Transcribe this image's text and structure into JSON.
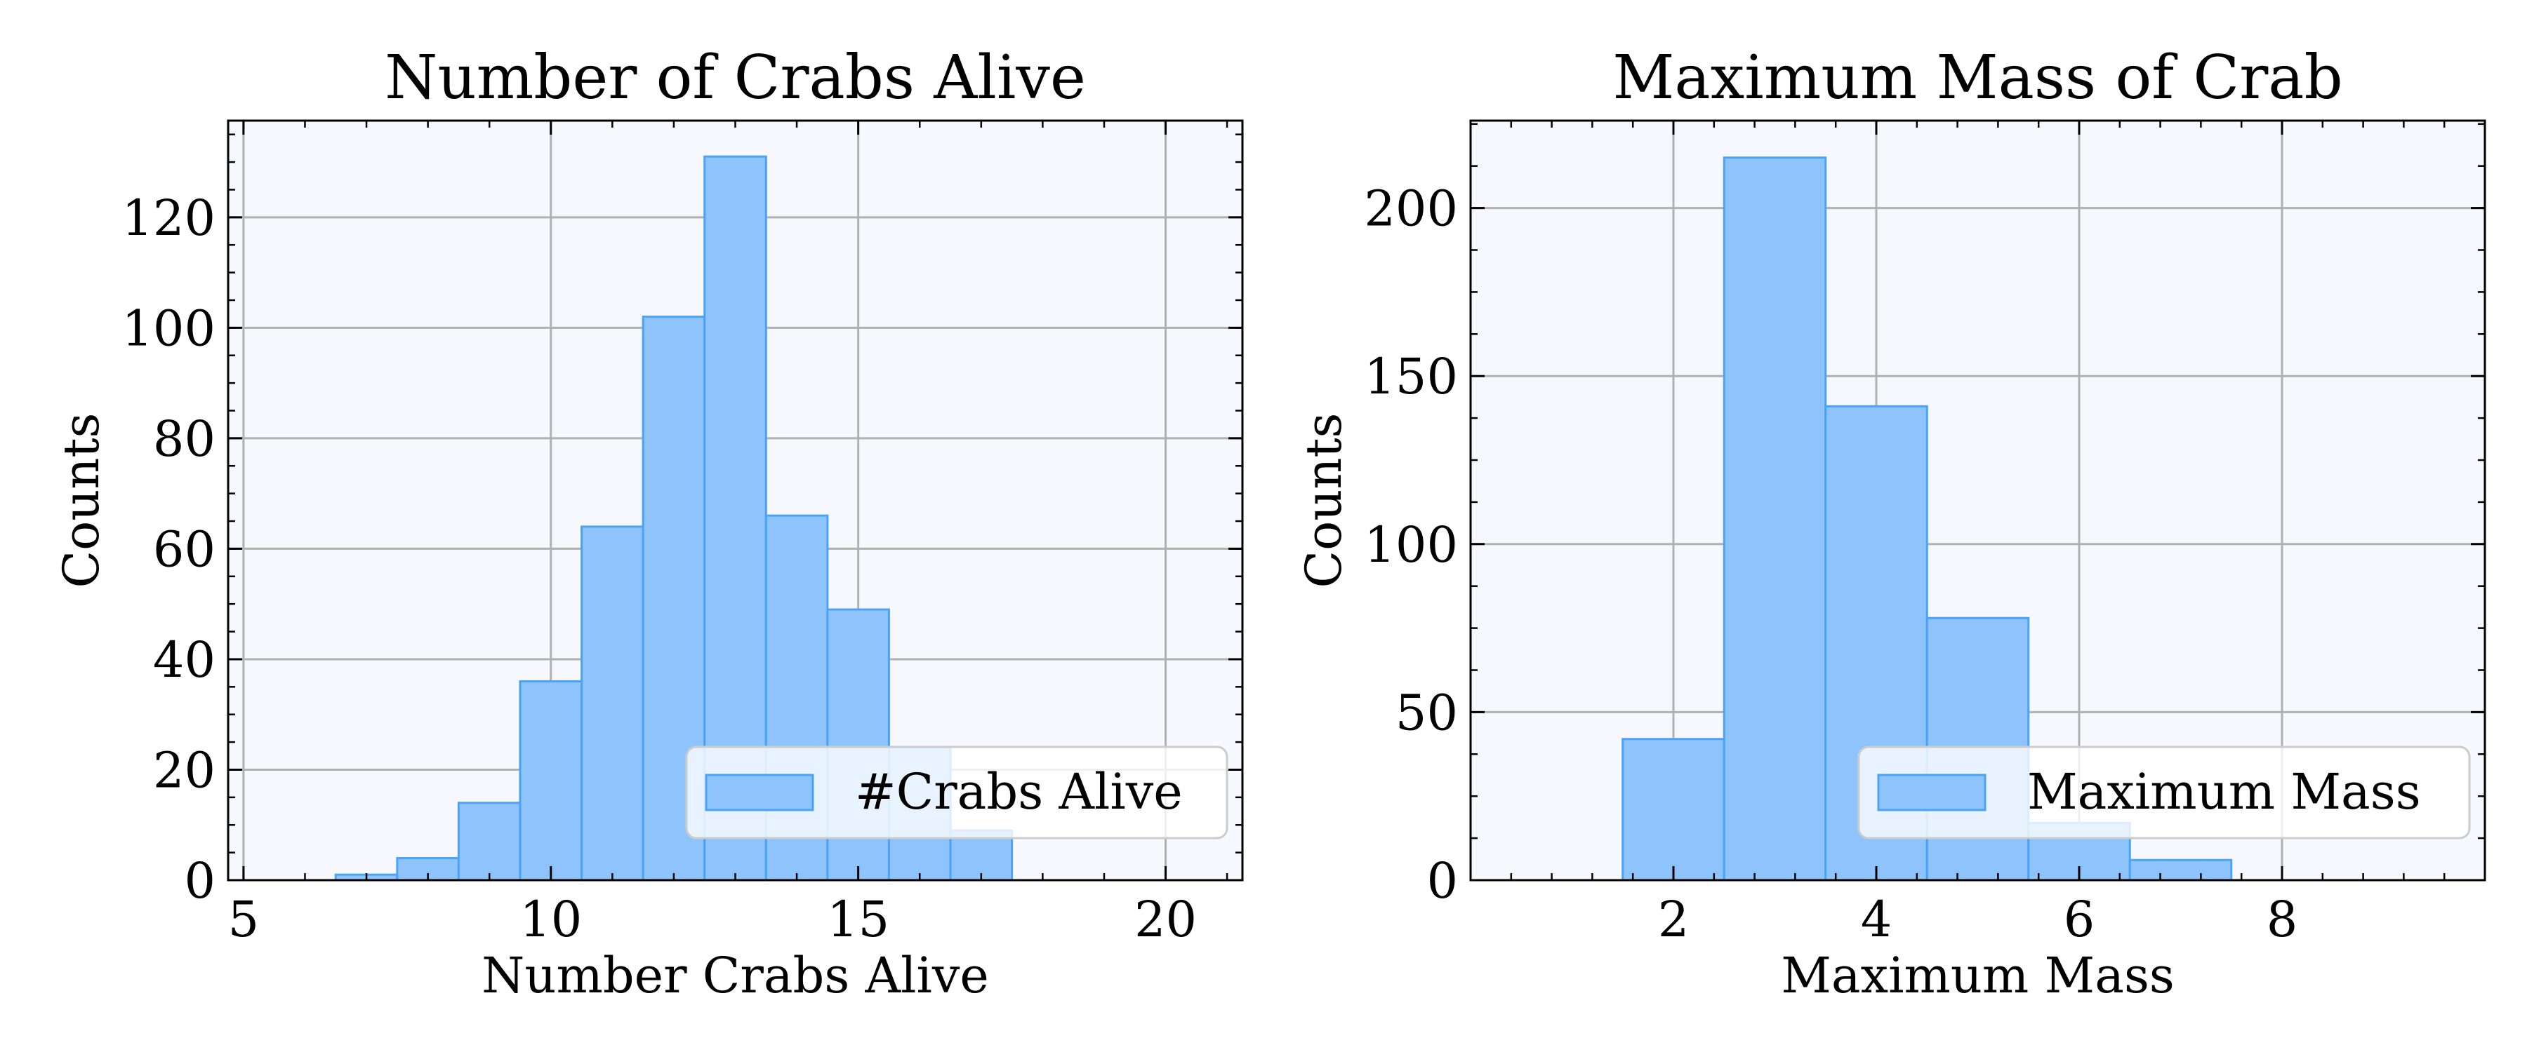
{
  "colors": {
    "bar_fill": "#8fc3fc",
    "bar_edge": "#4aa3f7",
    "plot_bg": "#f7f8fd",
    "grid": "#b0b0b0",
    "axes": "#000000"
  },
  "chart_data": [
    {
      "type": "bar",
      "title": "Number of Crabs Alive",
      "xlabel": "Number Crabs Alive",
      "ylabel": "Counts",
      "xlim": [
        4.75,
        21.25
      ],
      "ylim": [
        0,
        137.5
      ],
      "xticks": [
        5,
        10,
        15,
        20
      ],
      "xtick_labels": [
        "5",
        "10",
        "15",
        "20"
      ],
      "yticks": [
        0,
        20,
        40,
        60,
        80,
        100,
        120
      ],
      "ytick_labels": [
        "0",
        "20",
        "40",
        "60",
        "80",
        "100",
        "120"
      ],
      "grid": true,
      "legend": {
        "position": "lower-right",
        "entries": [
          "#Crabs Alive"
        ]
      },
      "bars": [
        {
          "x0": 6.5,
          "x1": 7.5,
          "value": 1
        },
        {
          "x0": 7.5,
          "x1": 8.5,
          "value": 4
        },
        {
          "x0": 8.5,
          "x1": 9.5,
          "value": 14
        },
        {
          "x0": 9.5,
          "x1": 10.5,
          "value": 36
        },
        {
          "x0": 10.5,
          "x1": 11.5,
          "value": 64
        },
        {
          "x0": 11.5,
          "x1": 12.5,
          "value": 102
        },
        {
          "x0": 12.5,
          "x1": 13.5,
          "value": 131
        },
        {
          "x0": 13.5,
          "x1": 14.5,
          "value": 66
        },
        {
          "x0": 14.5,
          "x1": 15.5,
          "value": 49
        },
        {
          "x0": 15.5,
          "x1": 16.5,
          "value": 24
        },
        {
          "x0": 16.5,
          "x1": 17.5,
          "value": 9
        }
      ]
    },
    {
      "type": "bar",
      "title": "Maximum Mass of Crab",
      "xlabel": "Maximum Mass",
      "ylabel": "Counts",
      "xlim": [
        0,
        10
      ],
      "ylim": [
        0,
        226
      ],
      "xticks": [
        2,
        4,
        6,
        8
      ],
      "xtick_labels": [
        "2",
        "4",
        "6",
        "8"
      ],
      "yticks": [
        0,
        50,
        100,
        150,
        200
      ],
      "ytick_labels": [
        "0",
        "50",
        "100",
        "150",
        "200"
      ],
      "grid": true,
      "legend": {
        "position": "lower-right",
        "entries": [
          "Maximum Mass"
        ]
      },
      "bars": [
        {
          "x0": 1.5,
          "x1": 2.5,
          "value": 42
        },
        {
          "x0": 2.5,
          "x1": 3.5,
          "value": 215
        },
        {
          "x0": 3.5,
          "x1": 4.5,
          "value": 141
        },
        {
          "x0": 4.5,
          "x1": 5.5,
          "value": 78
        },
        {
          "x0": 5.5,
          "x1": 6.5,
          "value": 17
        },
        {
          "x0": 6.5,
          "x1": 7.5,
          "value": 6
        }
      ]
    }
  ]
}
